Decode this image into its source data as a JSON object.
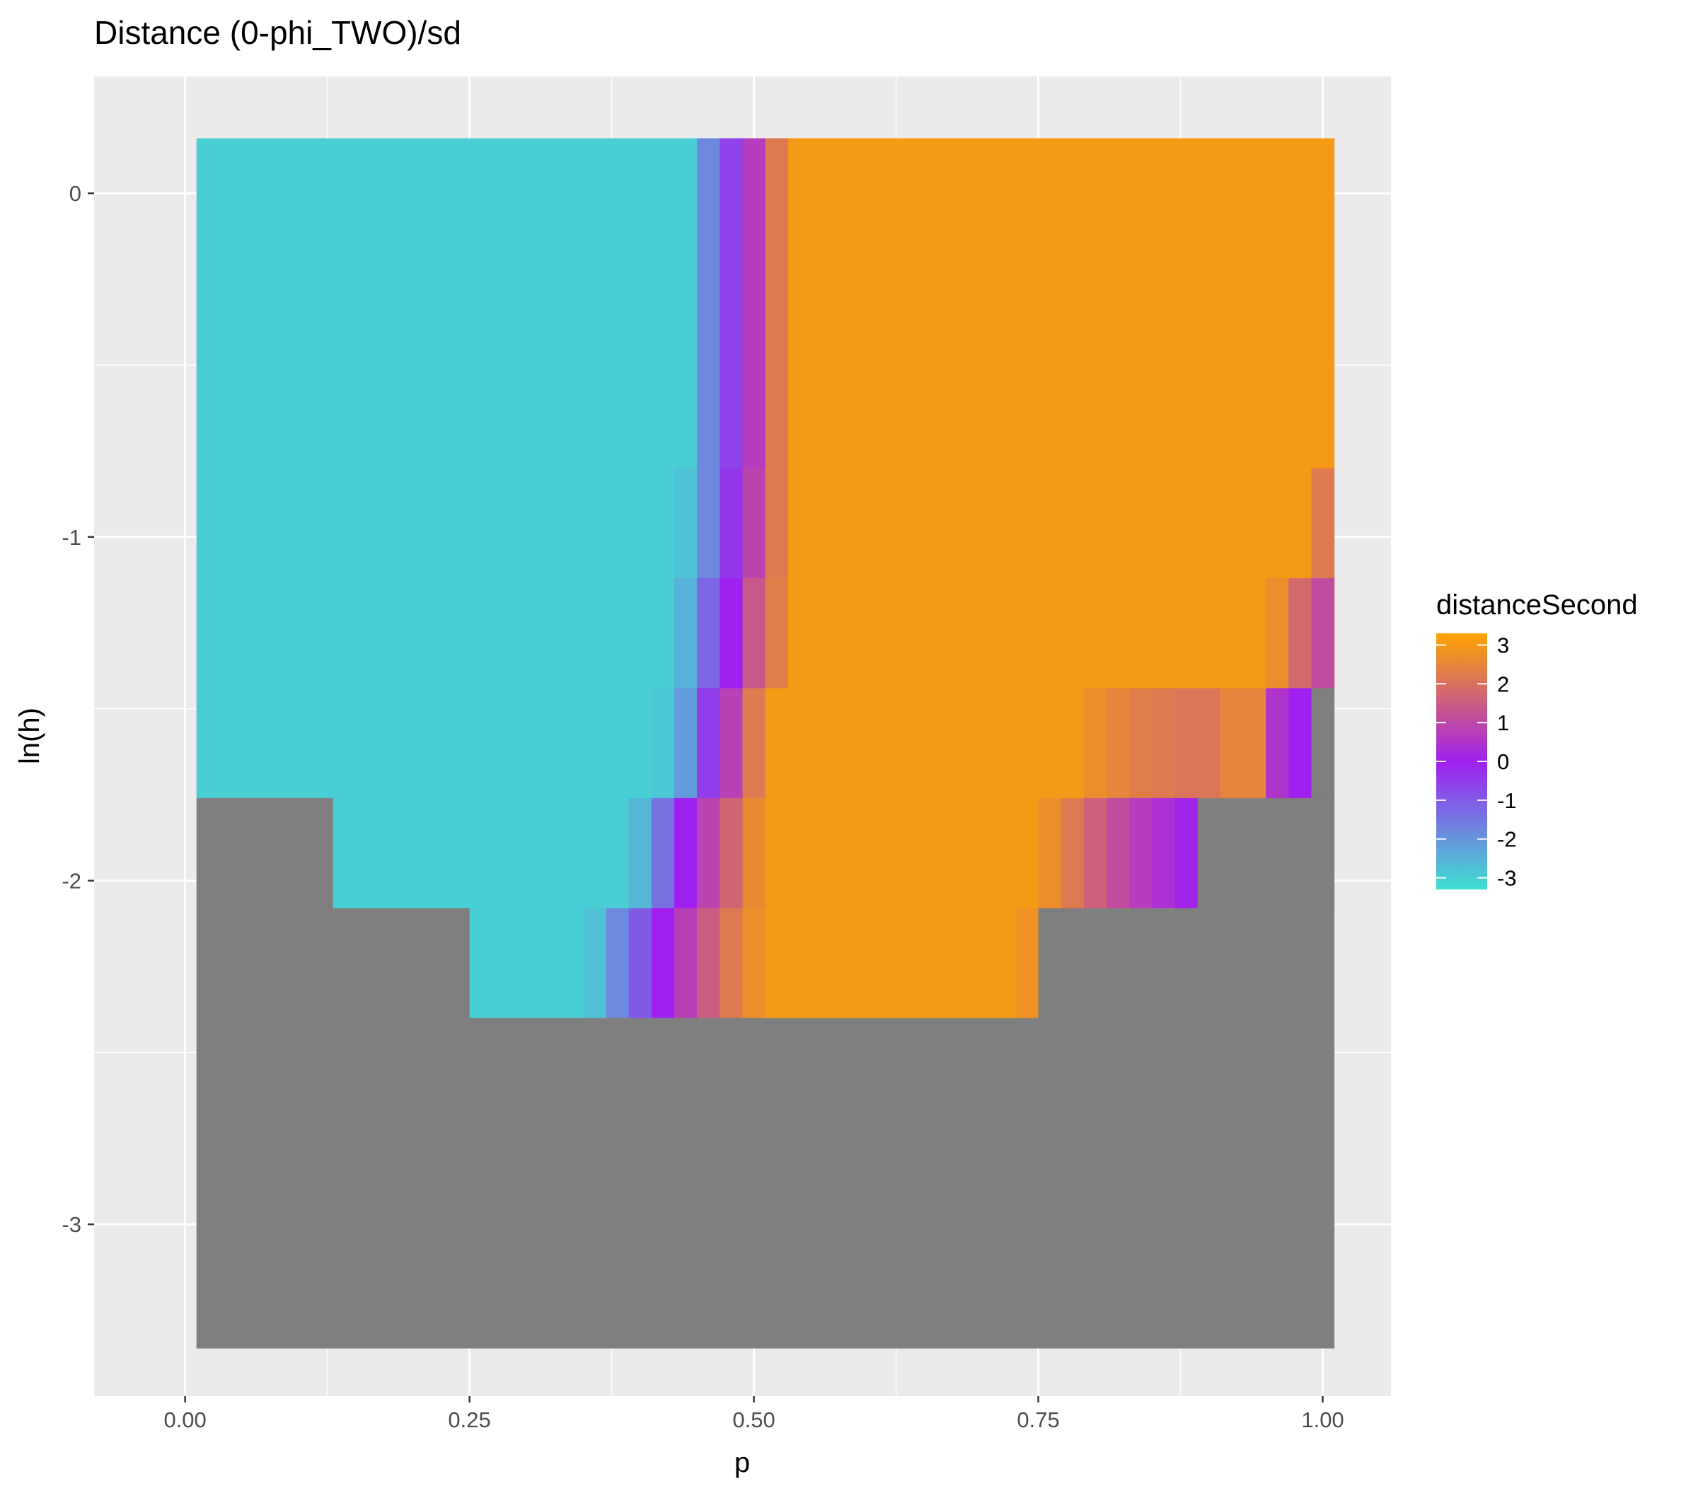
{
  "chart_data": {
    "type": "heatmap",
    "title": "Distance (0-phi_TWO)/sd",
    "xlabel": "p",
    "ylabel": "ln(h)",
    "xlim": [
      -0.08,
      1.06
    ],
    "ylim": [
      -3.5,
      0.34
    ],
    "x_ticks": [
      {
        "value": 0,
        "label": "0.00"
      },
      {
        "value": 0.25,
        "label": "0.25"
      },
      {
        "value": 0.5,
        "label": "0.50"
      },
      {
        "value": 0.75,
        "label": "0.75"
      },
      {
        "value": 1,
        "label": "1.00"
      }
    ],
    "y_ticks": [
      {
        "value": 0,
        "label": "0"
      },
      {
        "value": -1,
        "label": "-1"
      },
      {
        "value": -2,
        "label": "-2"
      },
      {
        "value": -3,
        "label": "-3"
      }
    ],
    "cell_width": 0.02,
    "rows": [
      {
        "y_top": 0.16,
        "y_bottom": -0.8,
        "cells": [
          {
            "x0": 0.01,
            "x1": 0.45,
            "value": -3
          },
          {
            "x0": 0.45,
            "x1": 0.47,
            "value": -1.8
          },
          {
            "x0": 0.47,
            "x1": 0.49,
            "value": -0.6
          },
          {
            "x0": 0.49,
            "x1": 0.51,
            "value": 0.7
          },
          {
            "x0": 0.51,
            "x1": 0.53,
            "value": 2.2
          },
          {
            "x0": 0.53,
            "x1": 1.01,
            "value": 3
          }
        ]
      },
      {
        "y_top": -0.8,
        "y_bottom": -1.12,
        "cells": [
          {
            "x0": 0.01,
            "x1": 0.43,
            "value": -3
          },
          {
            "x0": 0.43,
            "x1": 0.45,
            "value": -2.8
          },
          {
            "x0": 0.45,
            "x1": 0.47,
            "value": -1.8
          },
          {
            "x0": 0.47,
            "x1": 0.49,
            "value": -0.4
          },
          {
            "x0": 0.49,
            "x1": 0.51,
            "value": 0.9
          },
          {
            "x0": 0.51,
            "x1": 0.53,
            "value": 2.2
          },
          {
            "x0": 0.53,
            "x1": 0.99,
            "value": 3
          },
          {
            "x0": 0.99,
            "x1": 1.01,
            "value": 2.2
          }
        ]
      },
      {
        "y_top": -1.12,
        "y_bottom": -1.44,
        "cells": [
          {
            "x0": 0.01,
            "x1": 0.43,
            "value": -3
          },
          {
            "x0": 0.43,
            "x1": 0.45,
            "value": -2.5
          },
          {
            "x0": 0.45,
            "x1": 0.47,
            "value": -1.2
          },
          {
            "x0": 0.47,
            "x1": 0.49,
            "value": 0
          },
          {
            "x0": 0.49,
            "x1": 0.51,
            "value": 1.4
          },
          {
            "x0": 0.51,
            "x1": 0.53,
            "value": 2.3
          },
          {
            "x0": 0.53,
            "x1": 0.95,
            "value": 3
          },
          {
            "x0": 0.95,
            "x1": 0.97,
            "value": 2.7
          },
          {
            "x0": 0.97,
            "x1": 0.99,
            "value": 1.8
          },
          {
            "x0": 0.99,
            "x1": 1.01,
            "value": 1.1
          }
        ]
      },
      {
        "y_top": -1.44,
        "y_bottom": -1.76,
        "cells": [
          {
            "x0": 0.01,
            "x1": 0.41,
            "value": -3
          },
          {
            "x0": 0.41,
            "x1": 0.43,
            "value": -2.9
          },
          {
            "x0": 0.43,
            "x1": 0.45,
            "value": -2.1
          },
          {
            "x0": 0.45,
            "x1": 0.47,
            "value": -0.5
          },
          {
            "x0": 0.47,
            "x1": 0.49,
            "value": 0.8
          },
          {
            "x0": 0.49,
            "x1": 0.51,
            "value": 2.2
          },
          {
            "x0": 0.51,
            "x1": 0.79,
            "value": 3
          },
          {
            "x0": 0.79,
            "x1": 0.81,
            "value": 2.7
          },
          {
            "x0": 0.81,
            "x1": 0.83,
            "value": 2.5
          },
          {
            "x0": 0.83,
            "x1": 0.85,
            "value": 2.3
          },
          {
            "x0": 0.85,
            "x1": 0.87,
            "value": 2.2
          },
          {
            "x0": 0.87,
            "x1": 0.91,
            "value": 2.1
          },
          {
            "x0": 0.91,
            "x1": 0.95,
            "value": 2.5
          },
          {
            "x0": 0.95,
            "x1": 0.97,
            "value": 0.5
          },
          {
            "x0": 0.97,
            "x1": 0.99,
            "value": 0
          },
          {
            "x0": 0.99,
            "x1": 1.01,
            "value": null
          }
        ]
      },
      {
        "y_top": -1.76,
        "y_bottom": -2.08,
        "cells": [
          {
            "x0": 0.01,
            "x1": 0.13,
            "value": null
          },
          {
            "x0": 0.13,
            "x1": 0.39,
            "value": -3
          },
          {
            "x0": 0.39,
            "x1": 0.41,
            "value": -2.6
          },
          {
            "x0": 0.41,
            "x1": 0.43,
            "value": -1.4
          },
          {
            "x0": 0.43,
            "x1": 0.45,
            "value": 0
          },
          {
            "x0": 0.45,
            "x1": 0.47,
            "value": 0.9
          },
          {
            "x0": 0.47,
            "x1": 0.49,
            "value": 1.7
          },
          {
            "x0": 0.49,
            "x1": 0.51,
            "value": 2.6
          },
          {
            "x0": 0.51,
            "x1": 0.75,
            "value": 3
          },
          {
            "x0": 0.75,
            "x1": 0.77,
            "value": 2.7
          },
          {
            "x0": 0.77,
            "x1": 0.79,
            "value": 2.2
          },
          {
            "x0": 0.79,
            "x1": 0.81,
            "value": 1.6
          },
          {
            "x0": 0.81,
            "x1": 0.83,
            "value": 1.1
          },
          {
            "x0": 0.83,
            "x1": 0.85,
            "value": 0.7
          },
          {
            "x0": 0.85,
            "x1": 0.87,
            "value": 0.4
          },
          {
            "x0": 0.87,
            "x1": 0.89,
            "value": 0.1
          },
          {
            "x0": 0.89,
            "x1": 1.01,
            "value": null
          }
        ]
      },
      {
        "y_top": -2.08,
        "y_bottom": -2.4,
        "cells": [
          {
            "x0": 0.01,
            "x1": 0.25,
            "value": null
          },
          {
            "x0": 0.25,
            "x1": 0.35,
            "value": -3
          },
          {
            "x0": 0.35,
            "x1": 0.37,
            "value": -2.8
          },
          {
            "x0": 0.37,
            "x1": 0.39,
            "value": -1.8
          },
          {
            "x0": 0.39,
            "x1": 0.41,
            "value": -1
          },
          {
            "x0": 0.41,
            "x1": 0.43,
            "value": 0
          },
          {
            "x0": 0.43,
            "x1": 0.45,
            "value": 0.8
          },
          {
            "x0": 0.45,
            "x1": 0.47,
            "value": 1.5
          },
          {
            "x0": 0.47,
            "x1": 0.49,
            "value": 2.2
          },
          {
            "x0": 0.49,
            "x1": 0.51,
            "value": 2.7
          },
          {
            "x0": 0.51,
            "x1": 0.73,
            "value": 3
          },
          {
            "x0": 0.73,
            "x1": 0.75,
            "value": 2.8
          },
          {
            "x0": 0.75,
            "x1": 1.01,
            "value": null
          }
        ]
      },
      {
        "y_top": -2.4,
        "y_bottom": -3.36,
        "cells": [
          {
            "x0": 0.01,
            "x1": 1.01,
            "value": null
          }
        ]
      }
    ],
    "na_color": "#7f7f7f",
    "legend": {
      "title": "distanceSecond",
      "position": "right",
      "range": [
        -3.3,
        3.3
      ],
      "gradient": [
        {
          "value": -3.3,
          "color": "#40e0d0"
        },
        {
          "value": 0,
          "color": "#a020f0"
        },
        {
          "value": 3.3,
          "color": "#ffa500"
        }
      ],
      "ticks": [
        {
          "value": 3,
          "label": "3"
        },
        {
          "value": 2,
          "label": "2"
        },
        {
          "value": 1,
          "label": "1"
        },
        {
          "value": 0,
          "label": "0"
        },
        {
          "value": -1,
          "label": "-1"
        },
        {
          "value": -2,
          "label": "-2"
        },
        {
          "value": -3,
          "label": "-3"
        }
      ]
    },
    "grid": true
  }
}
